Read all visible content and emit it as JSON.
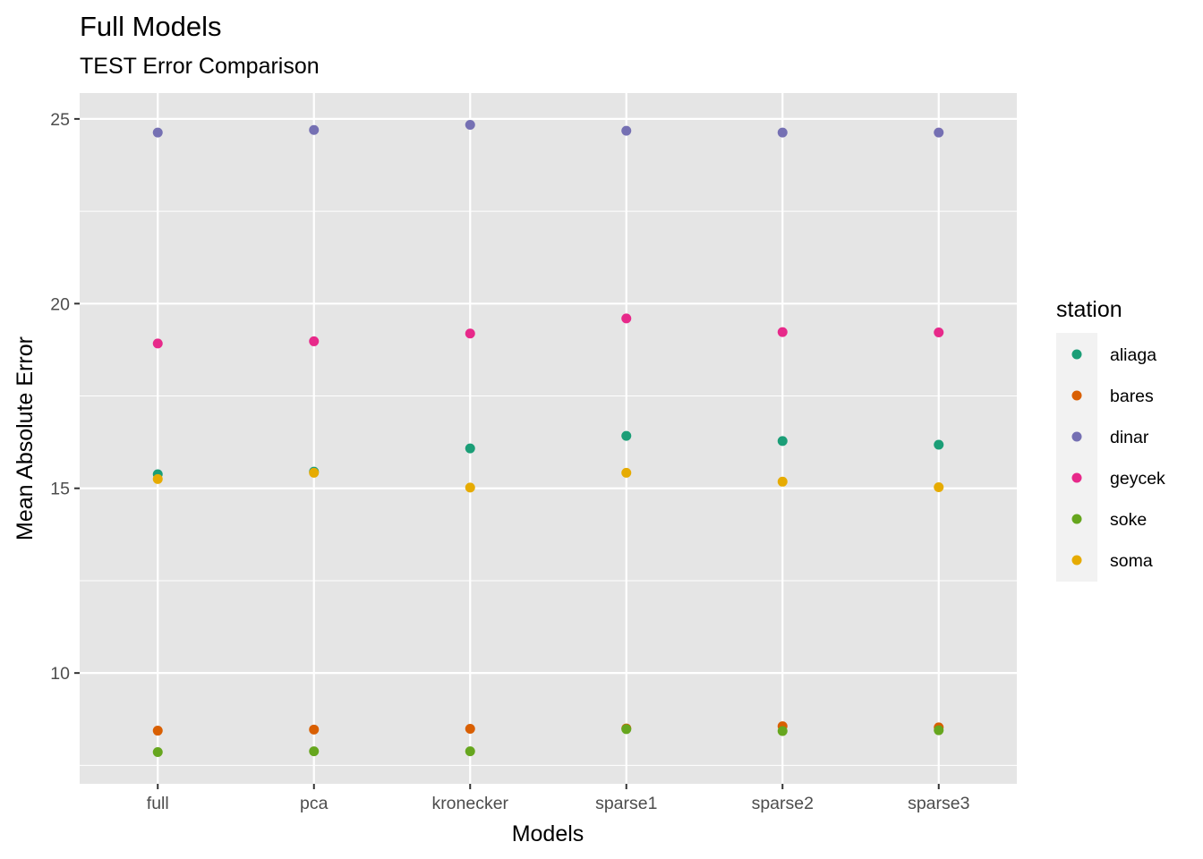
{
  "chart_data": {
    "type": "scatter",
    "title": "Full Models",
    "subtitle": "TEST Error Comparison",
    "xlabel": "Models",
    "ylabel": "Mean Absolute Error",
    "categories": [
      "full",
      "pca",
      "kronecker",
      "sparse1",
      "sparse2",
      "sparse3"
    ],
    "yticks": [
      10,
      15,
      20,
      25
    ],
    "ylim": [
      7.0,
      25.7
    ],
    "grid": true,
    "legend": {
      "title": "station",
      "position": "right"
    },
    "series": [
      {
        "name": "aliaga",
        "color": "#1b9e77",
        "values": [
          15.38,
          15.45,
          16.08,
          16.42,
          16.28,
          16.18
        ]
      },
      {
        "name": "bares",
        "color": "#d95f02",
        "values": [
          8.44,
          8.47,
          8.49,
          8.5,
          8.56,
          8.53
        ]
      },
      {
        "name": "dinar",
        "color": "#7570b3",
        "values": [
          24.63,
          24.7,
          24.84,
          24.68,
          24.63,
          24.63
        ]
      },
      {
        "name": "geycek",
        "color": "#e7298a",
        "values": [
          18.92,
          18.98,
          19.19,
          19.6,
          19.23,
          19.22
        ]
      },
      {
        "name": "soke",
        "color": "#66a61e",
        "values": [
          7.86,
          7.88,
          7.88,
          8.48,
          8.43,
          8.45
        ]
      },
      {
        "name": "soma",
        "color": "#e6ab02",
        "values": [
          15.25,
          15.42,
          15.02,
          15.42,
          15.18,
          15.03
        ]
      }
    ]
  }
}
